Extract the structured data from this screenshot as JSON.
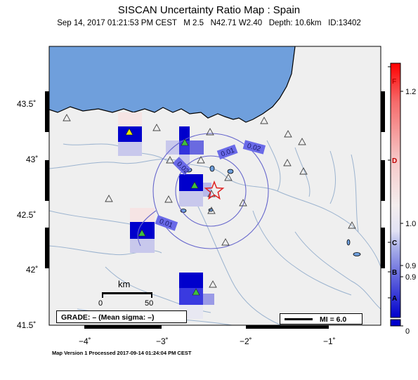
{
  "title": "SISCAN Uncertainty Ratio Map : Spain",
  "subtitle": "Sep 14, 2017 01:21:53 PM CEST   M 2.5   N42.71 W2.40   Depth: 10.6km   ID:13402",
  "footer": "Map Version 1 Processed 2017-09-14 01:24:04 PM CEST",
  "axes": {
    "lon_ticks": [
      {
        "value": -4,
        "label": "−4˚"
      },
      {
        "value": -3,
        "label": "−3˚"
      },
      {
        "value": -2,
        "label": "−2˚"
      },
      {
        "value": -1,
        "label": "−1˚"
      }
    ],
    "lat_ticks": [
      {
        "value": 43.5,
        "label": "43.5˚"
      },
      {
        "value": 43.0,
        "label": "43˚"
      },
      {
        "value": 42.5,
        "label": "42.5˚"
      },
      {
        "value": 42.0,
        "label": "42˚"
      },
      {
        "value": 41.5,
        "label": "41.5˚"
      }
    ]
  },
  "scale_bar": {
    "title": "km",
    "zero": "0",
    "max": "50"
  },
  "grade_box": "GRADE: – (Mean sigma: –)",
  "mi_legend": "MI = 6.0",
  "contour_labels": [
    "0.02",
    "0.01",
    "0.02",
    "0.01"
  ],
  "colorbar": {
    "labels_right": [
      "1.2",
      "1.0",
      "0.9",
      "0.9",
      "0"
    ],
    "grades": [
      "F",
      "D",
      "C",
      "B",
      "A"
    ],
    "colors": {
      "low": "#0000cc",
      "mid": "#f2f2f2",
      "high": "#ff0000"
    }
  },
  "colors": {
    "sea": "#6f9fdc",
    "land": "#efefef",
    "river": "#9bb3cf",
    "contour": "#6666cc",
    "epicenter": "#e02020"
  }
}
